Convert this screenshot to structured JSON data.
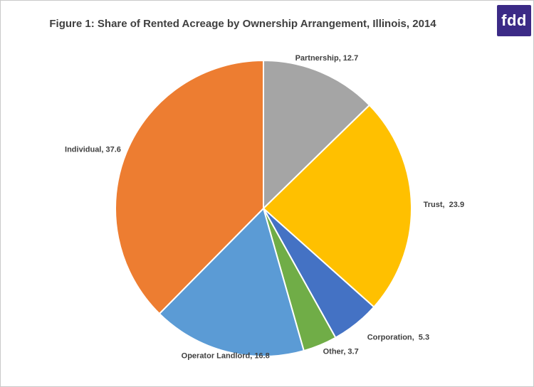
{
  "figure": {
    "title": "Figure 1: Share of Rented Acreage by Ownership Arrangement, Illinois, 2014"
  },
  "logo": {
    "text": "fdd",
    "background": "#3b2a86",
    "color": "#ffffff"
  },
  "chart_data": {
    "type": "pie",
    "title": "Figure 1: Share of Rented Acreage by Ownership Arrangement, Illinois, 2014",
    "start": "top",
    "direction": "clockwise",
    "slices": [
      {
        "label": "Partnership",
        "value": 12.7,
        "color": "#a5a5a5",
        "data_label": "Partnership, 12.7"
      },
      {
        "label": "Trust",
        "value": 23.9,
        "color": "#ffc000",
        "data_label": "Trust,  23.9"
      },
      {
        "label": "Corporation",
        "value": 5.3,
        "color": "#4472c4",
        "data_label": "Corporation,  5.3"
      },
      {
        "label": "Other",
        "value": 3.7,
        "color": "#70ad47",
        "data_label": "Other, 3.7"
      },
      {
        "label": "Operator Landlord",
        "value": 16.8,
        "color": "#5b9bd5",
        "data_label": "Operator Landlord, 16.8"
      },
      {
        "label": "Individual",
        "value": 37.6,
        "color": "#ed7d31",
        "data_label": "Individual, 37.6"
      }
    ]
  }
}
